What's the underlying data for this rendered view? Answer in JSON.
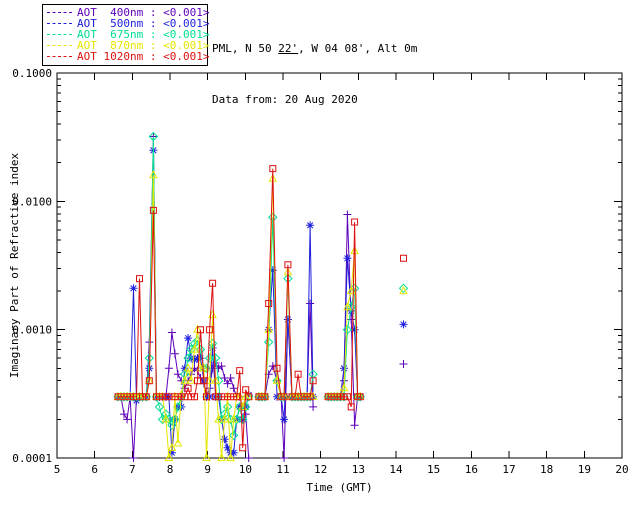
{
  "header": {
    "line1_prefix": "PML, N 50 ",
    "line1_minutes": "22'",
    "line1_suffix": ", W 04 08', Alt 0m",
    "line2": "Data from: 20 Aug 2020"
  },
  "legend": {
    "separator": " : ",
    "rows": [
      {
        "label": "AOT  400nm",
        "value": "<0.001>"
      },
      {
        "label": "AOT  500nm",
        "value": "<0.001>"
      },
      {
        "label": "AOT  675nm",
        "value": "<0.001>"
      },
      {
        "label": "AOT  870nm",
        "value": "<0.001>"
      },
      {
        "label": "AOT 1020nm",
        "value": "<0.001>"
      }
    ]
  },
  "colors": {
    "axis": "#000000",
    "background": "#ffffff",
    "aot_400": "#5c00b8",
    "aot_500": "#2020dd",
    "aot_675": "#00e090",
    "aot_870": "#e6e600",
    "aot_1020": "#dd1111"
  },
  "chart_data": {
    "type": "line",
    "title": "",
    "xlabel": "Time (GMT)",
    "ylabel": "Imaginary Part of Refractive index",
    "xlim": [
      5,
      20
    ],
    "ylim": [
      0.0001,
      0.1
    ],
    "yscale": "log",
    "grid": false,
    "legend_position": "top-left-outside",
    "x_ticks": [
      5,
      6,
      7,
      8,
      9,
      10,
      11,
      12,
      13,
      14,
      15,
      16,
      17,
      18,
      19,
      20
    ],
    "y_ticks": [
      0.0001,
      0.001,
      0.01,
      0.1
    ],
    "y_tick_labels": [
      "0.0001",
      "0.0010",
      "0.0100",
      "0.1000"
    ],
    "time_segments": [
      [
        6.62,
        6.7,
        6.78,
        6.86,
        6.94,
        7.03,
        7.11,
        7.19,
        7.27,
        7.37,
        7.45,
        7.56,
        7.64,
        7.72,
        7.8,
        7.89,
        7.97,
        8.05,
        8.13,
        8.21,
        8.3,
        8.39,
        8.48,
        8.56,
        8.65,
        8.73,
        8.81,
        8.9,
        8.97,
        9.05,
        9.13,
        9.21,
        9.29,
        9.37,
        9.45,
        9.53,
        9.61,
        9.69,
        9.77,
        9.85,
        9.93,
        10.01,
        10.09
      ],
      [
        10.36,
        10.44,
        10.52,
        10.62,
        10.73,
        10.84,
        10.95,
        11.03,
        11.13,
        11.24,
        11.32,
        11.4,
        11.48,
        11.56,
        11.64,
        11.72,
        11.8
      ],
      [
        12.2,
        12.28,
        12.36,
        12.44,
        12.52,
        12.62,
        12.71,
        12.81,
        12.9,
        12.98,
        13.05
      ],
      [
        14.2
      ]
    ],
    "series": [
      {
        "name": "AOT 400nm",
        "wavelength": "400nm",
        "legend_value": "<0.001>",
        "color_key": "aot_400",
        "marker": "plus",
        "values": [
          [
            0.0003,
            0.0003,
            0.00022,
            0.0002,
            0.0003,
            0.0001,
            0.0003,
            0.0003,
            0.0003,
            0.0003,
            0.0008,
            0.032,
            0.0003,
            0.0003,
            0.0003,
            0.0003,
            0.0005,
            0.00095,
            0.00065,
            0.00045,
            0.0004,
            0.00035,
            0.0004,
            0.00045,
            0.0005,
            0.00048,
            0.00042,
            0.00038,
            0.0003,
            0.00035,
            0.0005,
            0.00055,
            0.0005,
            0.00052,
            0.00042,
            0.00038,
            0.00042,
            0.00035,
            0.0003,
            0.0003,
            0.00025,
            0.00022,
            0.0001
          ],
          [
            0.0003,
            0.0003,
            0.0003,
            0.00045,
            0.00052,
            0.0004,
            0.0003,
            0.0001,
            0.0012,
            0.0003,
            0.0003,
            0.0003,
            0.0003,
            0.0003,
            0.0003,
            0.0016,
            0.00025
          ],
          [
            0.0003,
            0.0003,
            0.0003,
            0.0003,
            0.0003,
            0.0004,
            0.0079,
            0.0012,
            0.00018,
            0.0003,
            0.0003
          ],
          [
            0.00054
          ]
        ]
      },
      {
        "name": "AOT 500nm",
        "wavelength": "500nm",
        "legend_value": "<0.001>",
        "color_key": "aot_500",
        "marker": "asterisk",
        "values": [
          [
            0.0003,
            0.0003,
            0.0003,
            0.0003,
            0.0003,
            0.0021,
            0.00028,
            0.0003,
            0.0003,
            0.0003,
            0.0005,
            0.025,
            0.0003,
            0.0003,
            0.0003,
            0.0003,
            0.0003,
            0.00011,
            0.0002,
            0.00025,
            0.00025,
            0.0005,
            0.00086,
            0.0006,
            0.00058,
            0.0006,
            0.0006,
            0.0004,
            0.0003,
            0.0003,
            0.00072,
            0.0003,
            0.0003,
            0.0002,
            0.00014,
            0.00012,
            0.00011,
            0.00011,
            0.0002,
            0.00025,
            0.0002,
            0.00025,
            0.00031
          ],
          [
            0.0003,
            0.0003,
            0.0003,
            0.001,
            0.0029,
            0.0003,
            0.0003,
            0.0002,
            0.0012,
            0.0003,
            0.0003,
            0.0003,
            0.0003,
            0.0003,
            0.0003,
            0.0065,
            0.0003
          ],
          [
            0.0003,
            0.0003,
            0.0003,
            0.0003,
            0.0003,
            0.0005,
            0.0036,
            0.0014,
            0.001,
            0.0003,
            0.0003
          ],
          [
            0.0011
          ]
        ]
      },
      {
        "name": "AOT 675nm",
        "wavelength": "675nm",
        "legend_value": "<0.001>",
        "color_key": "aot_675",
        "marker": "diamond",
        "values": [
          [
            0.0003,
            0.0003,
            0.0003,
            0.0003,
            0.0003,
            0.0003,
            0.0003,
            0.0003,
            0.0003,
            0.0003,
            0.0006,
            0.032,
            0.0003,
            0.00025,
            0.0002,
            0.00022,
            0.0002,
            0.00018,
            0.0002,
            0.00025,
            0.0003,
            0.00045,
            0.0006,
            0.0007,
            0.00078,
            0.00082,
            0.0007,
            0.0005,
            0.0005,
            0.0006,
            0.00078,
            0.0006,
            0.0004,
            0.0002,
            0.00022,
            0.00025,
            0.0002,
            0.00015,
            0.0002,
            0.00025,
            0.0002,
            0.00025,
            0.0003
          ],
          [
            0.0003,
            0.0003,
            0.0003,
            0.0008,
            0.0075,
            0.0004,
            0.0003,
            0.0003,
            0.0025,
            0.0003,
            0.0003,
            0.0003,
            0.0003,
            0.0003,
            0.0003,
            0.0003,
            0.00045
          ],
          [
            0.0003,
            0.0003,
            0.0003,
            0.0003,
            0.0003,
            0.0003,
            0.001,
            0.0015,
            0.0021,
            0.0003,
            0.0003
          ],
          [
            0.0021
          ]
        ]
      },
      {
        "name": "AOT 870nm",
        "wavelength": "870nm",
        "legend_value": "<0.001>",
        "color_key": "aot_870",
        "marker": "triangle",
        "values": [
          [
            0.0003,
            0.0003,
            0.0003,
            0.0003,
            0.0003,
            0.0003,
            0.0003,
            0.0003,
            0.0003,
            0.0003,
            0.0004,
            0.016,
            0.0003,
            0.0003,
            0.0003,
            0.0002,
            0.0001,
            0.00012,
            0.0003,
            0.00013,
            0.00031,
            0.0004,
            0.0005,
            0.0004,
            0.0007,
            0.001,
            0.0005,
            0.0005,
            0.0001,
            0.0004,
            0.0013,
            0.0004,
            0.0002,
            0.0001,
            0.0002,
            0.0003,
            0.0001,
            0.0002,
            0.0003,
            0.0003,
            0.00025,
            0.0003,
            0.0003
          ],
          [
            0.0003,
            0.0003,
            0.0003,
            0.001,
            0.015,
            0.0004,
            0.0003,
            0.0003,
            0.0028,
            0.0003,
            0.0003,
            0.0003,
            0.0003,
            0.0003,
            0.0003,
            0.0003,
            0.0003
          ],
          [
            0.0003,
            0.0003,
            0.0003,
            0.0003,
            0.0003,
            0.00035,
            0.0015,
            0.002,
            0.0041,
            0.0003,
            0.0003
          ],
          [
            0.002
          ]
        ]
      },
      {
        "name": "AOT 1020nm",
        "wavelength": "1020nm",
        "legend_value": "<0.001>",
        "color_key": "aot_1020",
        "marker": "square",
        "values": [
          [
            0.0003,
            0.0003,
            0.0003,
            0.0003,
            0.0003,
            0.0003,
            0.0003,
            0.0025,
            0.0003,
            0.0003,
            0.0004,
            0.0085,
            0.0003,
            0.0003,
            0.0003,
            0.0003,
            0.0003,
            0.0003,
            0.0003,
            0.0003,
            0.0003,
            0.0003,
            0.00035,
            0.0003,
            0.0003,
            0.0004,
            0.001,
            0.0004,
            0.0003,
            0.001,
            0.0023,
            0.0003,
            0.0003,
            0.0003,
            0.0003,
            0.0003,
            0.0003,
            0.0003,
            0.0003,
            0.00048,
            0.00012,
            0.00034,
            0.0003
          ],
          [
            0.0003,
            0.0003,
            0.0003,
            0.0016,
            0.018,
            0.0005,
            0.0003,
            0.0003,
            0.0032,
            0.0003,
            0.0003,
            0.00045,
            0.0003,
            0.0003,
            0.0003,
            0.0003,
            0.0004
          ],
          [
            0.0003,
            0.0003,
            0.0003,
            0.0003,
            0.0003,
            0.0003,
            0.0003,
            0.00025,
            0.0069,
            0.0003,
            0.0003
          ],
          [
            0.0036
          ]
        ]
      }
    ]
  }
}
